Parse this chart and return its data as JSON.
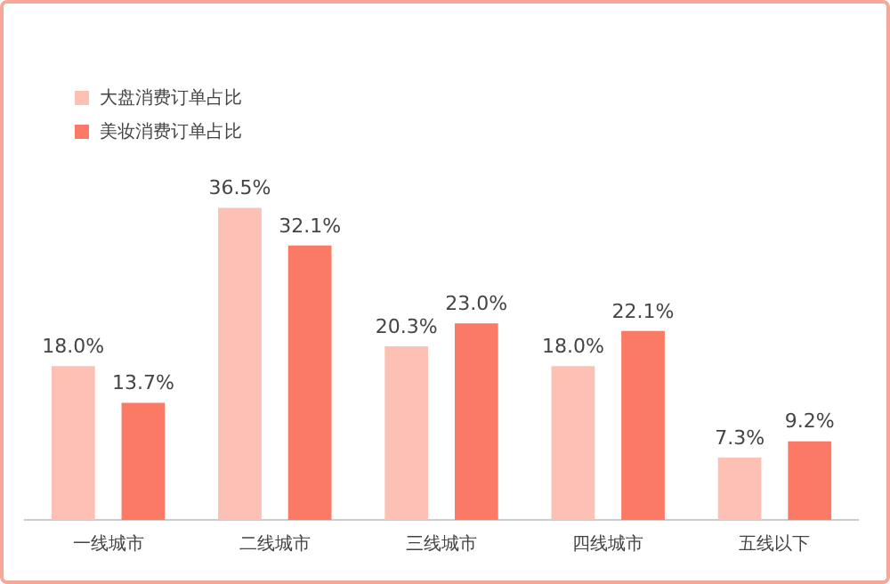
{
  "chart_data": {
    "type": "bar",
    "categories": [
      "一线城市",
      "二线城市",
      "三线城市",
      "四线城市",
      "五线以下"
    ],
    "series": [
      {
        "name": "大盘消费订单占比",
        "color": "#fcc0b4",
        "values": [
          18.0,
          36.5,
          20.3,
          18.0,
          7.3
        ],
        "value_labels": [
          "18.0%",
          "36.5%",
          "20.3%",
          "18.0%",
          "7.3%"
        ]
      },
      {
        "name": "美妆消费订单占比",
        "color": "#fa7a65",
        "values": [
          13.7,
          32.1,
          23.0,
          22.1,
          9.2
        ],
        "value_labels": [
          "13.7%",
          "32.1%",
          "23.0%",
          "22.1%",
          "9.2%"
        ]
      }
    ],
    "legend": "top left",
    "grid": false
  }
}
